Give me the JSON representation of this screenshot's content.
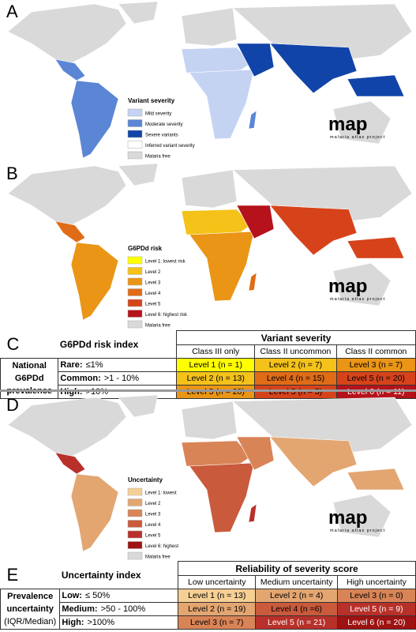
{
  "panels": [
    {
      "label": "A",
      "legend": {
        "title": "Variant severity",
        "items": [
          {
            "label": "Mild severity",
            "color": "#c5d3f3"
          },
          {
            "label": "Moderate severity",
            "color": "#5b86d6"
          },
          {
            "label": "Severe variants",
            "color": "#1144a8"
          },
          {
            "label": "Inferred variant severity",
            "color": "#ffffff"
          },
          {
            "label": "Malaria free",
            "color": "#d9d9d9"
          }
        ]
      },
      "logo": {
        "name": "map",
        "tagline": "malaria atlas project"
      }
    },
    {
      "label": "B",
      "legend": {
        "title": "G6PDd risk",
        "items": [
          {
            "label": "Level 1: lowest risk",
            "color": "#ffff00"
          },
          {
            "label": "Level 2",
            "color": "#f4c219"
          },
          {
            "label": "Level 3",
            "color": "#ea9516"
          },
          {
            "label": "Level 4",
            "color": "#e06c17"
          },
          {
            "label": "Level 5",
            "color": "#d6431b"
          },
          {
            "label": "Level 6: highest risk",
            "color": "#b5121b"
          },
          {
            "label": "Malaria free",
            "color": "#d9d9d9"
          }
        ]
      },
      "logo": {
        "name": "map",
        "tagline": "malaria atlas project"
      }
    },
    {
      "label": "D",
      "legend": {
        "title": "Uncertainty",
        "items": [
          {
            "label": "Level 1: lowest",
            "color": "#f6cf94"
          },
          {
            "label": "Level 2",
            "color": "#e3a671"
          },
          {
            "label": "Level 3",
            "color": "#d98457"
          },
          {
            "label": "Level 4",
            "color": "#c95a3c"
          },
          {
            "label": "Level 5",
            "color": "#b8302a"
          },
          {
            "label": "Level 6: highest",
            "color": "#9e1212"
          },
          {
            "label": "Malaria free",
            "color": "#d9d9d9"
          }
        ]
      },
      "logo": {
        "name": "map",
        "tagline": "malaria atlas project"
      }
    }
  ],
  "tables": [
    {
      "label": "C",
      "title": "G6PDd risk index",
      "group_header": "Variant severity",
      "columns": [
        "Class III only",
        "Class II uncommon",
        "Class II common"
      ],
      "row_group": [
        "National",
        "G6PDd",
        "prevalence"
      ],
      "rows": [
        {
          "term": "Rare:",
          "range": "≤1%",
          "cells": [
            {
              "text": "Level 1 (n = 1)",
              "color": "#ffff00"
            },
            {
              "text": "Level 2 (n = 7)",
              "color": "#f4c219"
            },
            {
              "text": "Level 3 (n = 7)",
              "color": "#ea9516"
            }
          ]
        },
        {
          "term": "Common:",
          "range": ">1 - 10%",
          "cells": [
            {
              "text": "Level 2 (n = 13)",
              "color": "#f4c219"
            },
            {
              "text": "Level 4 (n = 15)",
              "color": "#e06c17"
            },
            {
              "text": "Level 5 (n = 20)",
              "color": "#d6431b"
            }
          ]
        },
        {
          "term": "High:",
          "range": ">10%",
          "cells": [
            {
              "text": "Level 3 (n = 20)",
              "color": "#ea9516"
            },
            {
              "text": "Level 5 (n = 5)",
              "color": "#d6431b"
            },
            {
              "text": "Level 6 (n = 11)",
              "color": "#b5121b"
            }
          ]
        }
      ]
    },
    {
      "label": "E",
      "title": "Uncertainty index",
      "group_header": "Reliability of severity score",
      "columns": [
        "Low uncertainty",
        "Medium uncertainty",
        "High uncertainty"
      ],
      "row_group": [
        "Prevalence",
        "uncertainty",
        "(IQR/Median)"
      ],
      "rows": [
        {
          "term": "Low:",
          "range": "≤ 50%",
          "cells": [
            {
              "text": "Level 1 (n = 13)",
              "color": "#f6cf94"
            },
            {
              "text": "Level 2 (n = 4)",
              "color": "#e3a671"
            },
            {
              "text": "Level 3 (n = 0)",
              "color": "#d98457"
            }
          ]
        },
        {
          "term": "Medium:",
          "range": ">50 - 100%",
          "cells": [
            {
              "text": "Level 2 (n = 19)",
              "color": "#e3a671"
            },
            {
              "text": "Level 4 (n =6)",
              "color": "#c95a3c"
            },
            {
              "text": "Level 5 (n = 9)",
              "color": "#b8302a"
            }
          ]
        },
        {
          "term": "High:",
          "range": ">100%",
          "cells": [
            {
              "text": "Level 3 (n = 7)",
              "color": "#d98457"
            },
            {
              "text": "Level 5 (n = 21)",
              "color": "#b8302a"
            },
            {
              "text": "Level 6 (n = 20)",
              "color": "#9e1212"
            }
          ]
        }
      ]
    }
  ]
}
